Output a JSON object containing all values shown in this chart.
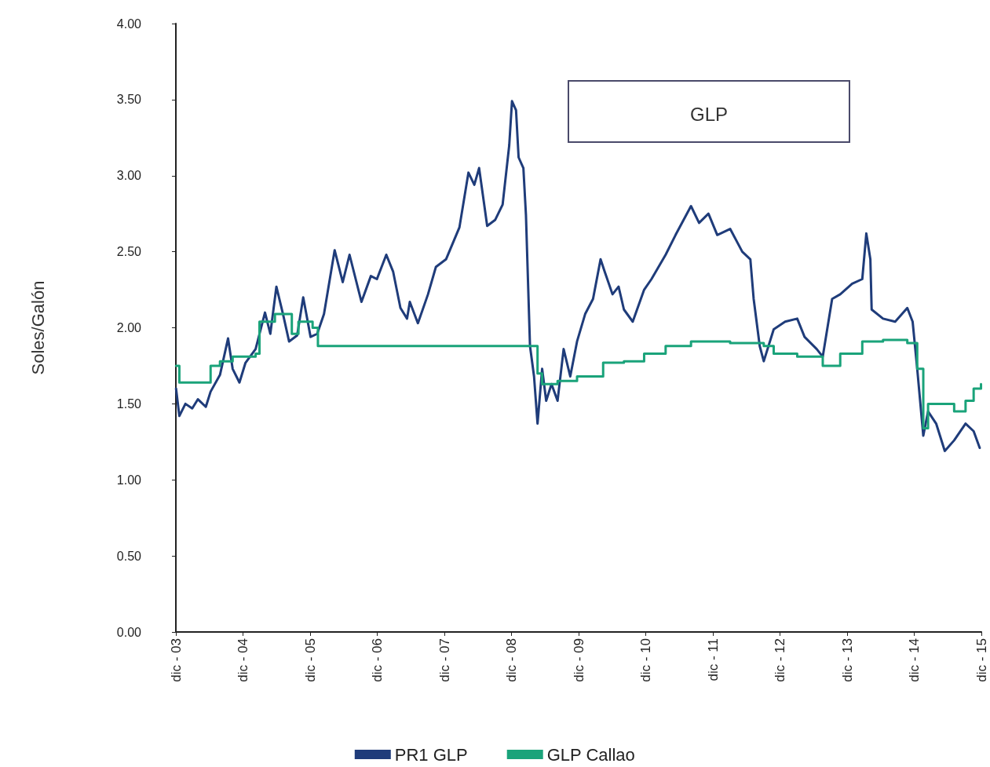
{
  "chart_data": {
    "type": "line",
    "title": "GLP",
    "ylabel": "Soles/Galón",
    "xlim": [
      "2003-12-01",
      "2015-12-01"
    ],
    "xticks": [
      {
        "value": "2003-12-01",
        "label": "dic - 03"
      },
      {
        "value": "2004-12-01",
        "label": "dic - 04"
      },
      {
        "value": "2005-12-01",
        "label": "dic - 05"
      },
      {
        "value": "2006-12-01",
        "label": "dic - 06"
      },
      {
        "value": "2007-12-01",
        "label": "dic - 07"
      },
      {
        "value": "2008-12-01",
        "label": "dic - 08"
      },
      {
        "value": "2009-12-01",
        "label": "dic - 09"
      },
      {
        "value": "2010-12-01",
        "label": "dic - 10"
      },
      {
        "value": "2011-12-01",
        "label": "dic - 11"
      },
      {
        "value": "2012-12-01",
        "label": "dic - 12"
      },
      {
        "value": "2013-12-01",
        "label": "dic - 13"
      },
      {
        "value": "2014-12-01",
        "label": "dic - 14"
      },
      {
        "value": "2015-12-01",
        "label": "dic - 15"
      }
    ],
    "ylim": [
      0,
      4
    ],
    "yticks": [
      {
        "value": 0,
        "label": "0.00"
      },
      {
        "value": 0.5,
        "label": "0.50"
      },
      {
        "value": 1,
        "label": "1.00"
      },
      {
        "value": 1.5,
        "label": "1.50"
      },
      {
        "value": 2,
        "label": "2.00"
      },
      {
        "value": 2.5,
        "label": "2.50"
      },
      {
        "value": 3,
        "label": "3.00"
      },
      {
        "value": 3.5,
        "label": "3.50"
      },
      {
        "value": 4,
        "label": "4.00"
      }
    ],
    "grid": false,
    "legend": "bottom",
    "marker": "none",
    "line_style": "solid",
    "series": [
      {
        "name": "PR1 GLP",
        "color": "#1f3c7a",
        "x": [
          "2003-12-02",
          "2003-12-20",
          "2004-01-22",
          "2004-02-28",
          "2004-03-30",
          "2004-05-12",
          "2004-06-07",
          "2004-07-28",
          "2004-09-10",
          "2004-10-05",
          "2004-11-11",
          "2004-12-14",
          "2005-02-07",
          "2005-03-30",
          "2005-04-28",
          "2005-05-31",
          "2005-07-06",
          "2005-08-08",
          "2005-09-21",
          "2005-10-24",
          "2005-12-03",
          "2006-01-08",
          "2006-02-14",
          "2006-04-13",
          "2006-05-27",
          "2006-07-03",
          "2006-09-06",
          "2006-10-27",
          "2006-11-29",
          "2007-01-19",
          "2007-02-25",
          "2007-04-06",
          "2007-05-12",
          "2007-05-27",
          "2007-07-10",
          "2007-09-03",
          "2007-10-16",
          "2007-12-10",
          "2008-02-21",
          "2008-04-10",
          "2008-05-12",
          "2008-06-07",
          "2008-07-21",
          "2008-09-03",
          "2008-10-13",
          "2008-11-18",
          "2008-12-03",
          "2008-12-25",
          "2009-01-08",
          "2009-02-03",
          "2009-02-17",
          "2009-03-11",
          "2009-04-02",
          "2009-04-21",
          "2009-05-16",
          "2009-06-07",
          "2009-07-06",
          "2009-08-08",
          "2009-09-10",
          "2009-10-16",
          "2009-11-22",
          "2010-01-05",
          "2010-02-17",
          "2010-03-30",
          "2010-04-21",
          "2010-06-03",
          "2010-07-06",
          "2010-08-04",
          "2010-09-21",
          "2010-11-22",
          "2011-01-01",
          "2011-03-19",
          "2011-05-12",
          "2011-08-04",
          "2011-09-17",
          "2011-11-07",
          "2011-12-25",
          "2012-03-04",
          "2012-05-09",
          "2012-06-22",
          "2012-07-10",
          "2012-08-12",
          "2012-09-03",
          "2012-10-27",
          "2012-12-28",
          "2013-03-04",
          "2013-04-13",
          "2013-06-18",
          "2013-07-21",
          "2013-09-10",
          "2013-10-24",
          "2013-12-28",
          "2014-02-21",
          "2014-03-15",
          "2014-04-06",
          "2014-04-13",
          "2014-06-14",
          "2014-08-19",
          "2014-10-24",
          "2014-11-22",
          "2014-12-17",
          "2015-01-19",
          "2015-02-14",
          "2015-03-30",
          "2015-05-16",
          "2015-07-06",
          "2015-09-06",
          "2015-10-20",
          "2015-11-22"
        ],
        "values": [
          1.6,
          1.42,
          1.5,
          1.47,
          1.53,
          1.48,
          1.58,
          1.69,
          1.93,
          1.73,
          1.64,
          1.77,
          1.86,
          2.1,
          1.96,
          2.27,
          2.09,
          1.91,
          1.95,
          2.2,
          1.94,
          1.96,
          2.09,
          2.51,
          2.3,
          2.48,
          2.17,
          2.34,
          2.32,
          2.48,
          2.37,
          2.13,
          2.06,
          2.17,
          2.03,
          2.22,
          2.4,
          2.45,
          2.66,
          3.02,
          2.94,
          3.05,
          2.67,
          2.71,
          2.81,
          3.2,
          3.49,
          3.43,
          3.12,
          3.05,
          2.74,
          1.88,
          1.68,
          1.37,
          1.73,
          1.52,
          1.63,
          1.52,
          1.86,
          1.68,
          1.91,
          2.09,
          2.19,
          2.45,
          2.37,
          2.22,
          2.27,
          2.12,
          2.04,
          2.25,
          2.32,
          2.48,
          2.61,
          2.8,
          2.69,
          2.75,
          2.61,
          2.65,
          2.5,
          2.45,
          2.19,
          1.88,
          1.78,
          1.99,
          2.04,
          2.06,
          1.94,
          1.86,
          1.81,
          2.19,
          2.22,
          2.29,
          2.32,
          2.62,
          2.45,
          2.12,
          2.06,
          2.04,
          2.13,
          2.04,
          1.73,
          1.29,
          1.45,
          1.37,
          1.19,
          1.26,
          1.37,
          1.32,
          1.21
        ]
      },
      {
        "name": "GLP Callao",
        "color": "#1aa37a",
        "type": "step",
        "x": [
          "2003-12-02",
          "2003-12-20",
          "2004-06-07",
          "2004-07-28",
          "2004-10-05",
          "2005-02-07",
          "2005-02-28",
          "2005-05-23",
          "2005-08-23",
          "2005-09-28",
          "2005-12-14",
          "2006-01-12",
          "2009-03-11",
          "2009-04-21",
          "2009-05-16",
          "2009-08-08",
          "2009-11-22",
          "2010-04-13",
          "2010-08-04",
          "2010-11-22",
          "2011-03-19",
          "2011-08-04",
          "2012-03-04",
          "2012-09-03",
          "2012-10-27",
          "2013-03-04",
          "2013-07-21",
          "2013-10-24",
          "2014-02-21",
          "2014-06-14",
          "2014-10-24",
          "2014-12-17",
          "2015-01-19",
          "2015-02-14",
          "2015-05-16",
          "2015-07-06",
          "2015-09-06",
          "2015-10-20",
          "2015-11-29"
        ],
        "values": [
          1.75,
          1.64,
          1.75,
          1.78,
          1.81,
          1.83,
          2.04,
          2.09,
          1.96,
          2.04,
          2.0,
          1.88,
          1.88,
          1.7,
          1.63,
          1.65,
          1.68,
          1.77,
          1.78,
          1.83,
          1.88,
          1.91,
          1.9,
          1.88,
          1.83,
          1.81,
          1.75,
          1.83,
          1.91,
          1.92,
          1.9,
          1.73,
          1.34,
          1.5,
          1.5,
          1.45,
          1.52,
          1.6,
          1.63
        ]
      }
    ]
  }
}
